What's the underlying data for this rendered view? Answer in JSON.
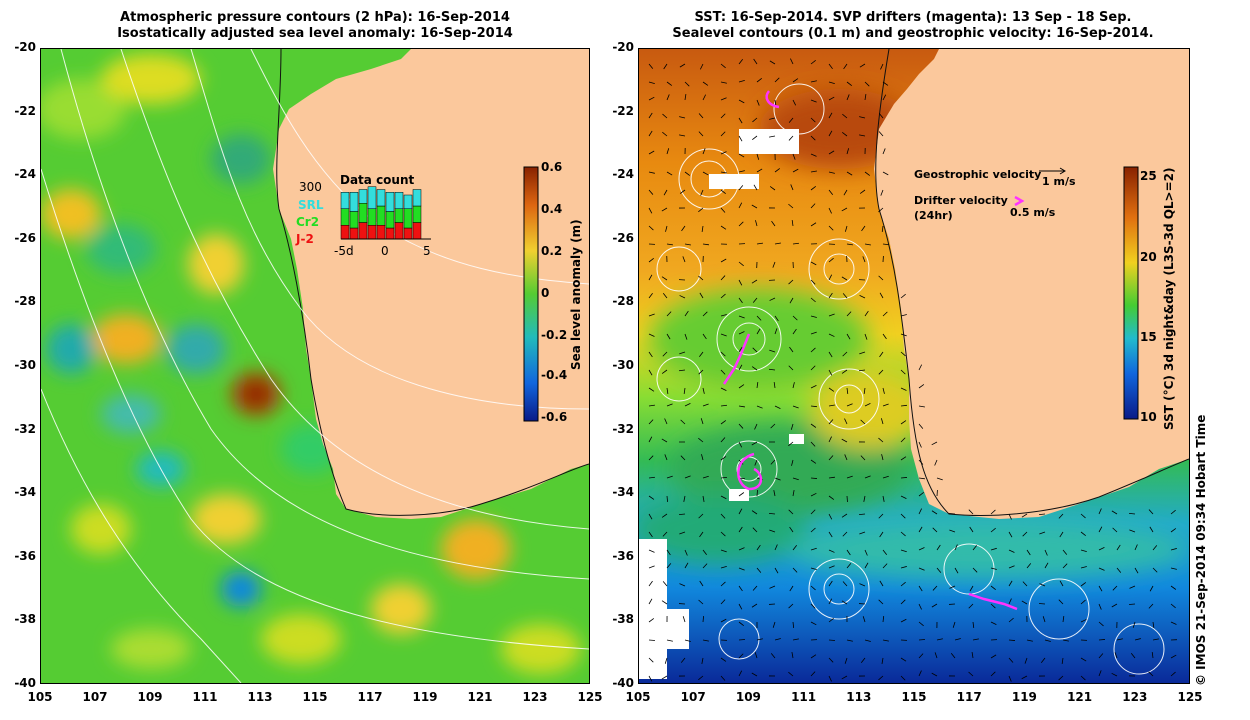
{
  "left_panel": {
    "title_line1": "Atmospheric pressure contours (2 hPa): 16-Sep-2014",
    "title_line2": "Isostatically adjusted sea level anomaly: 16-Sep-2014",
    "colorbar": {
      "label": "Sea level anomaly (m)",
      "ticks": [
        "0.6",
        "0.4",
        "0.2",
        "0",
        "-0.2",
        "-0.4",
        "-0.6"
      ]
    },
    "inset": {
      "title": "Data count",
      "ymax_label": "300",
      "x_ticks": [
        "-5d",
        "0",
        "5"
      ],
      "legend": [
        {
          "name": "SRL",
          "color": "#33dddd"
        },
        {
          "name": "Cr2",
          "color": "#22dd22"
        },
        {
          "name": "J-2",
          "color": "#ee1111"
        }
      ],
      "bars": [
        {
          "srl": 0.3,
          "cr2": 0.3,
          "j2": 0.25
        },
        {
          "srl": 0.35,
          "cr2": 0.3,
          "j2": 0.2
        },
        {
          "srl": 0.25,
          "cr2": 0.35,
          "j2": 0.3
        },
        {
          "srl": 0.4,
          "cr2": 0.3,
          "j2": 0.25
        },
        {
          "srl": 0.3,
          "cr2": 0.35,
          "j2": 0.25
        },
        {
          "srl": 0.35,
          "cr2": 0.3,
          "j2": 0.2
        },
        {
          "srl": 0.3,
          "cr2": 0.25,
          "j2": 0.3
        },
        {
          "srl": 0.25,
          "cr2": 0.35,
          "j2": 0.2
        },
        {
          "srl": 0.3,
          "cr2": 0.3,
          "j2": 0.3
        }
      ]
    }
  },
  "right_panel": {
    "title_line1": "SST: 16-Sep-2014. SVP drifters (magenta): 13 Sep - 18 Sep.",
    "title_line2": "Sealevel contours (0.1 m) and geostrophic velocity: 16-Sep-2014.",
    "colorbar": {
      "label": "SST (°C) 3d night&day (L3S-3d QL>=2)",
      "ticks": [
        "25",
        "20",
        "15",
        "10"
      ]
    },
    "legend": {
      "geo_label": "Geostrophic velocity",
      "geo_scale": "1 m/s",
      "drifter_label": "Drifter velocity",
      "drifter_sub": "(24hr)",
      "drifter_scale": "0.5 m/s"
    }
  },
  "axes": {
    "y_ticks": [
      "-20",
      "-22",
      "-24",
      "-26",
      "-28",
      "-30",
      "-32",
      "-34",
      "-36",
      "-38",
      "-40"
    ],
    "x_ticks": [
      "105",
      "107",
      "109",
      "111",
      "113",
      "115",
      "117",
      "119",
      "121",
      "123",
      "125"
    ]
  },
  "credit": "© IMOS 21-Sep-2014 09:34 Hobart Time",
  "colors": {
    "land": "#fbc89c",
    "drifter": "#ff33ff",
    "slaLow": "#1155dd",
    "slaHigh": "#bb2200"
  }
}
